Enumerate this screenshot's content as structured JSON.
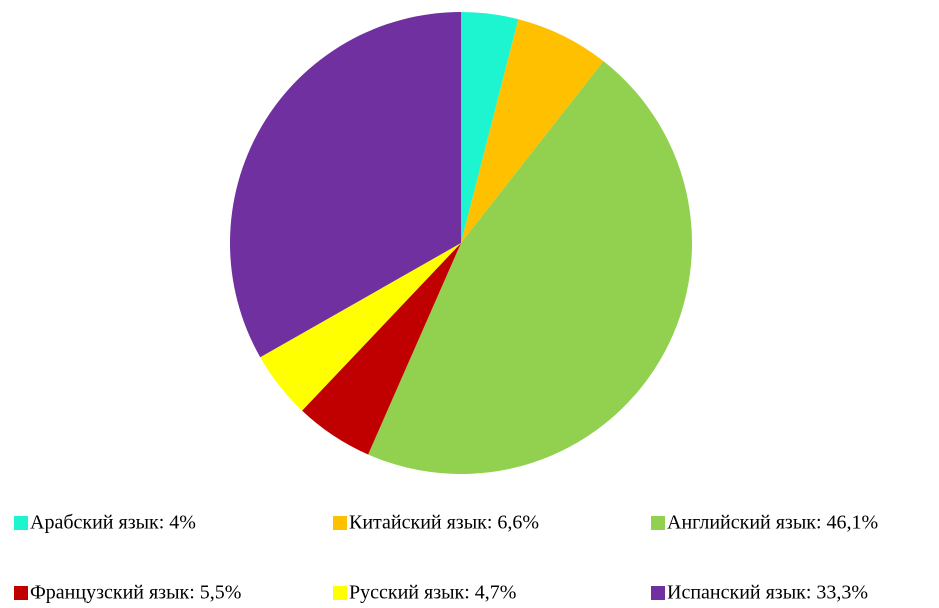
{
  "chart_data": {
    "type": "pie",
    "categories": [
      "Арабский язык: 4%",
      "Китайский язык: 6,6%",
      "Английский язык: 46,1%",
      "Французский язык: 5,5%",
      "Русский язык: 4,7%",
      "Испанский язык: 33,3%"
    ],
    "values": [
      4,
      6.6,
      46.1,
      5.5,
      4.7,
      33.3
    ],
    "colors": [
      "#1cf5d0",
      "#ffc000",
      "#92d050",
      "#c00000",
      "#ffff00",
      "#7030a0"
    ],
    "legend": "bottom"
  }
}
